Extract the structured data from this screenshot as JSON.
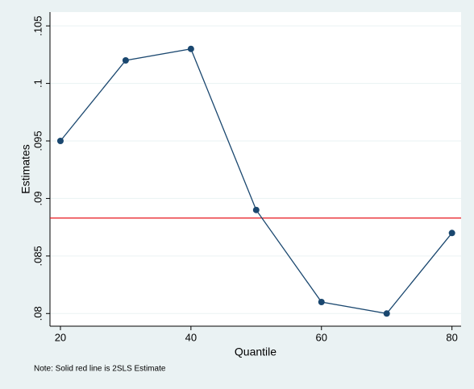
{
  "chart_data": {
    "type": "line",
    "x": [
      20,
      30,
      40,
      50,
      60,
      70,
      80
    ],
    "series": [
      {
        "color": "#1a476f",
        "values": [
          0.095,
          0.102,
          0.103,
          0.089,
          0.081,
          0.08,
          0.087
        ]
      }
    ],
    "xlim": [
      18.4,
      81.4
    ],
    "xticks": [
      20,
      40,
      60,
      80
    ],
    "ylim": [
      0.0789,
      0.1062
    ],
    "yticks": [
      {
        "value": 0.08,
        "label": ".08"
      },
      {
        "value": 0.085,
        "label": ".085"
      },
      {
        "value": 0.09,
        "label": ".09"
      },
      {
        "value": 0.095,
        "label": ".095"
      },
      {
        "value": 0.1,
        "label": ".1"
      },
      {
        "value": 0.105,
        "label": ".105"
      }
    ],
    "xlabel": "Quantile",
    "ylabel": "Estimates",
    "reference_line": {
      "value": 0.0883,
      "color": "#e8151b"
    },
    "note": "Note: Solid red line is 2SLS Estimate",
    "grid": true
  }
}
